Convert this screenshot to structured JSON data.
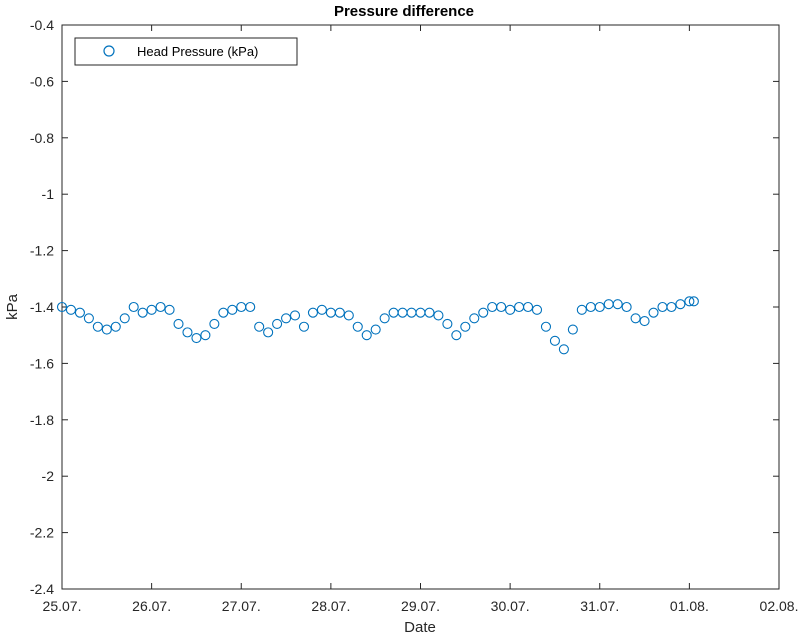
{
  "chart_data": {
    "type": "scatter",
    "title": "Pressure difference",
    "xlabel": "Date",
    "ylabel": "kPa",
    "xlim": [
      "25.07.",
      "02.08."
    ],
    "ylim": [
      -2.4,
      -0.4
    ],
    "x_ticks": [
      "25.07.",
      "26.07.",
      "27.07.",
      "28.07.",
      "29.07.",
      "30.07.",
      "31.07.",
      "01.08.",
      "02.08."
    ],
    "y_ticks": [
      "-0.4",
      "-0.6",
      "-0.8",
      "-1",
      "-1.2",
      "-1.4",
      "-1.6",
      "-1.8",
      "-2",
      "-2.2",
      "-2.4"
    ],
    "grid": false,
    "legend_position": "top-left",
    "marker": "open-circle",
    "series": [
      {
        "name": "Head Pressure (kPa)",
        "color": "#0072BD",
        "x_days_from_start": [
          0.0,
          0.1,
          0.2,
          0.3,
          0.4,
          0.5,
          0.6,
          0.7,
          0.8,
          0.9,
          1.0,
          1.1,
          1.2,
          1.3,
          1.4,
          1.5,
          1.6,
          1.7,
          1.8,
          1.9,
          2.0,
          2.1,
          2.2,
          2.3,
          2.4,
          2.5,
          2.6,
          2.7,
          2.8,
          2.9,
          3.0,
          3.1,
          3.2,
          3.3,
          3.4,
          3.5,
          3.6,
          3.7,
          3.8,
          3.9,
          4.0,
          4.1,
          4.2,
          4.3,
          4.4,
          4.5,
          4.6,
          4.7,
          4.8,
          4.9,
          5.0,
          5.1,
          5.2,
          5.3,
          5.4,
          5.5,
          5.6,
          5.7,
          5.8,
          5.9,
          6.0,
          6.1,
          6.2,
          6.3,
          6.4,
          6.5,
          6.6,
          6.7,
          6.8,
          6.9,
          7.0,
          7.05
        ],
        "x": [
          "25.07. 00:00",
          "25.07. 02:24",
          "25.07. 04:48",
          "25.07. 07:12",
          "25.07. 09:36",
          "25.07. 12:00",
          "25.07. 14:24",
          "25.07. 16:48",
          "25.07. 19:12",
          "25.07. 21:36",
          "26.07. 00:00",
          "26.07. 02:24",
          "26.07. 04:48",
          "26.07. 07:12",
          "26.07. 09:36",
          "26.07. 12:00",
          "26.07. 14:24",
          "26.07. 16:48",
          "26.07. 19:12",
          "26.07. 21:36",
          "27.07. 00:00",
          "27.07. 02:24",
          "27.07. 04:48",
          "27.07. 07:12",
          "27.07. 09:36",
          "27.07. 12:00",
          "27.07. 14:24",
          "27.07. 16:48",
          "27.07. 19:12",
          "27.07. 21:36",
          "28.07. 00:00",
          "28.07. 02:24",
          "28.07. 04:48",
          "28.07. 07:12",
          "28.07. 09:36",
          "28.07. 12:00",
          "28.07. 14:24",
          "28.07. 16:48",
          "28.07. 19:12",
          "28.07. 21:36",
          "29.07. 00:00",
          "29.07. 02:24",
          "29.07. 04:48",
          "29.07. 07:12",
          "29.07. 09:36",
          "29.07. 12:00",
          "29.07. 14:24",
          "29.07. 16:48",
          "29.07. 19:12",
          "29.07. 21:36",
          "30.07. 00:00",
          "30.07. 02:24",
          "30.07. 04:48",
          "30.07. 07:12",
          "30.07. 09:36",
          "30.07. 12:00",
          "30.07. 14:24",
          "30.07. 16:48",
          "30.07. 19:12",
          "30.07. 21:36",
          "31.07. 00:00",
          "31.07. 02:24",
          "31.07. 04:48",
          "31.07. 07:12",
          "31.07. 09:36",
          "31.07. 12:00",
          "31.07. 14:24",
          "31.07. 16:48",
          "31.07. 19:12",
          "31.07. 21:36",
          "01.08. 00:00",
          "01.08. 01:12"
        ],
        "y": [
          -1.4,
          -1.41,
          -1.42,
          -1.44,
          -1.47,
          -1.48,
          -1.47,
          -1.44,
          -1.4,
          -1.42,
          -1.41,
          -1.4,
          -1.41,
          -1.46,
          -1.49,
          -1.51,
          -1.5,
          -1.46,
          -1.42,
          -1.41,
          -1.4,
          -1.4,
          -1.47,
          -1.49,
          -1.46,
          -1.44,
          -1.43,
          -1.47,
          -1.42,
          -1.41,
          -1.42,
          -1.42,
          -1.43,
          -1.47,
          -1.5,
          -1.48,
          -1.44,
          -1.42,
          -1.42,
          -1.42,
          -1.42,
          -1.42,
          -1.43,
          -1.46,
          -1.5,
          -1.47,
          -1.44,
          -1.42,
          -1.4,
          -1.4,
          -1.41,
          -1.4,
          -1.4,
          -1.41,
          -1.47,
          -1.52,
          -1.55,
          -1.48,
          -1.41,
          -1.4,
          -1.4,
          -1.39,
          -1.39,
          -1.4,
          -1.44,
          -1.45,
          -1.42,
          -1.4,
          -1.4,
          -1.39,
          -1.38,
          -1.38
        ]
      }
    ]
  }
}
